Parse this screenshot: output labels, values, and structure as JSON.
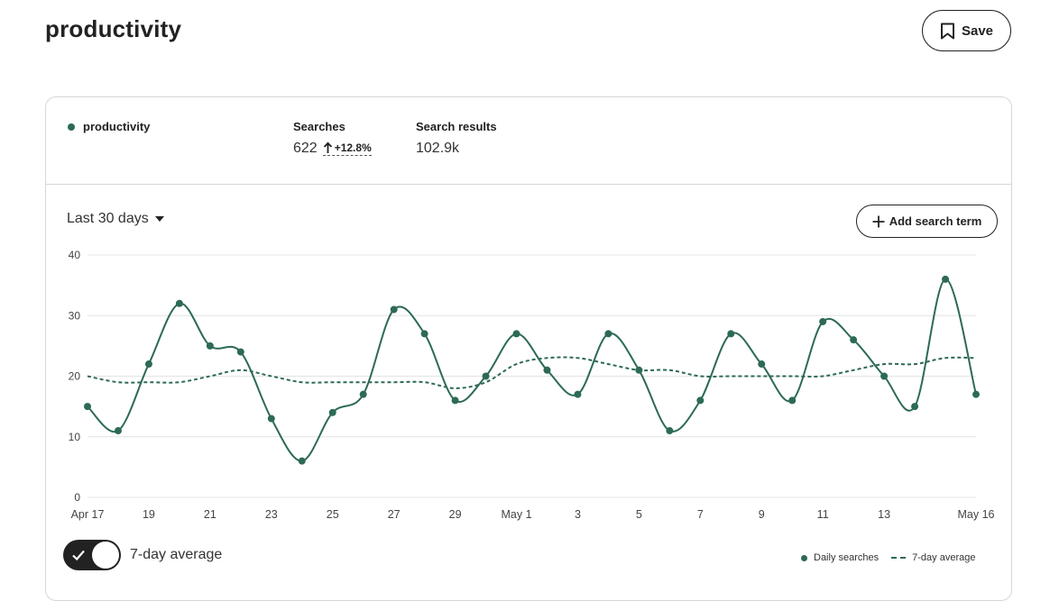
{
  "header": {
    "title": "productivity",
    "save_label": "Save"
  },
  "stats": {
    "term": "productivity",
    "searches_label": "Searches",
    "searches_value": "622",
    "searches_change": "+12.8%",
    "results_label": "Search results",
    "results_value": "102.9k"
  },
  "controls": {
    "range_label": "Last 30 days",
    "add_term_label": "Add search term"
  },
  "toggle": {
    "label": "7-day average",
    "enabled": true
  },
  "legend": {
    "daily": "Daily searches",
    "average": "7-day average"
  },
  "colors": {
    "series": "#2d6a55",
    "grid": "#e4e4e4",
    "text": "#222222"
  },
  "icons": {
    "save": "bookmark-icon",
    "change": "arrow-up-icon",
    "dropdown": "caret-down-icon",
    "add": "plus-icon",
    "toggle": "check-icon"
  },
  "chart_data": {
    "type": "line",
    "title": "",
    "xlabel": "",
    "ylabel": "",
    "ylim": [
      0,
      40
    ],
    "yticks": [
      0,
      10,
      20,
      30,
      40
    ],
    "grid": true,
    "legend_position": "bottom-right",
    "x": [
      "Apr 17",
      "Apr 18",
      "Apr 19",
      "Apr 20",
      "Apr 21",
      "Apr 22",
      "Apr 23",
      "Apr 24",
      "Apr 25",
      "Apr 26",
      "Apr 27",
      "Apr 28",
      "Apr 29",
      "Apr 30",
      "May 1",
      "May 2",
      "May 3",
      "May 4",
      "May 5",
      "May 6",
      "May 7",
      "May 8",
      "May 9",
      "May 10",
      "May 11",
      "May 12",
      "May 13",
      "May 14",
      "May 15",
      "May 16"
    ],
    "xtick_labels": [
      {
        "index": 0,
        "label": "Apr 17"
      },
      {
        "index": 2,
        "label": "19"
      },
      {
        "index": 4,
        "label": "21"
      },
      {
        "index": 6,
        "label": "23"
      },
      {
        "index": 8,
        "label": "25"
      },
      {
        "index": 10,
        "label": "27"
      },
      {
        "index": 12,
        "label": "29"
      },
      {
        "index": 14,
        "label": "May 1"
      },
      {
        "index": 16,
        "label": "3"
      },
      {
        "index": 18,
        "label": "5"
      },
      {
        "index": 20,
        "label": "7"
      },
      {
        "index": 22,
        "label": "9"
      },
      {
        "index": 24,
        "label": "11"
      },
      {
        "index": 26,
        "label": "13"
      },
      {
        "index": 29,
        "label": "May 16"
      }
    ],
    "series": [
      {
        "name": "Daily searches",
        "style": "solid-with-markers",
        "values": [
          15,
          11,
          22,
          32,
          25,
          24,
          13,
          6,
          14,
          17,
          31,
          27,
          16,
          20,
          27,
          21,
          17,
          27,
          21,
          11,
          16,
          27,
          22,
          16,
          29,
          26,
          20,
          15,
          36,
          17
        ]
      },
      {
        "name": "7-day average",
        "style": "dashed",
        "values": [
          20,
          19,
          19,
          19,
          20,
          21,
          20,
          19,
          19,
          19,
          19,
          19,
          18,
          19,
          22,
          23,
          23,
          22,
          21,
          21,
          20,
          20,
          20,
          20,
          20,
          21,
          22,
          22,
          23,
          23
        ]
      }
    ]
  }
}
